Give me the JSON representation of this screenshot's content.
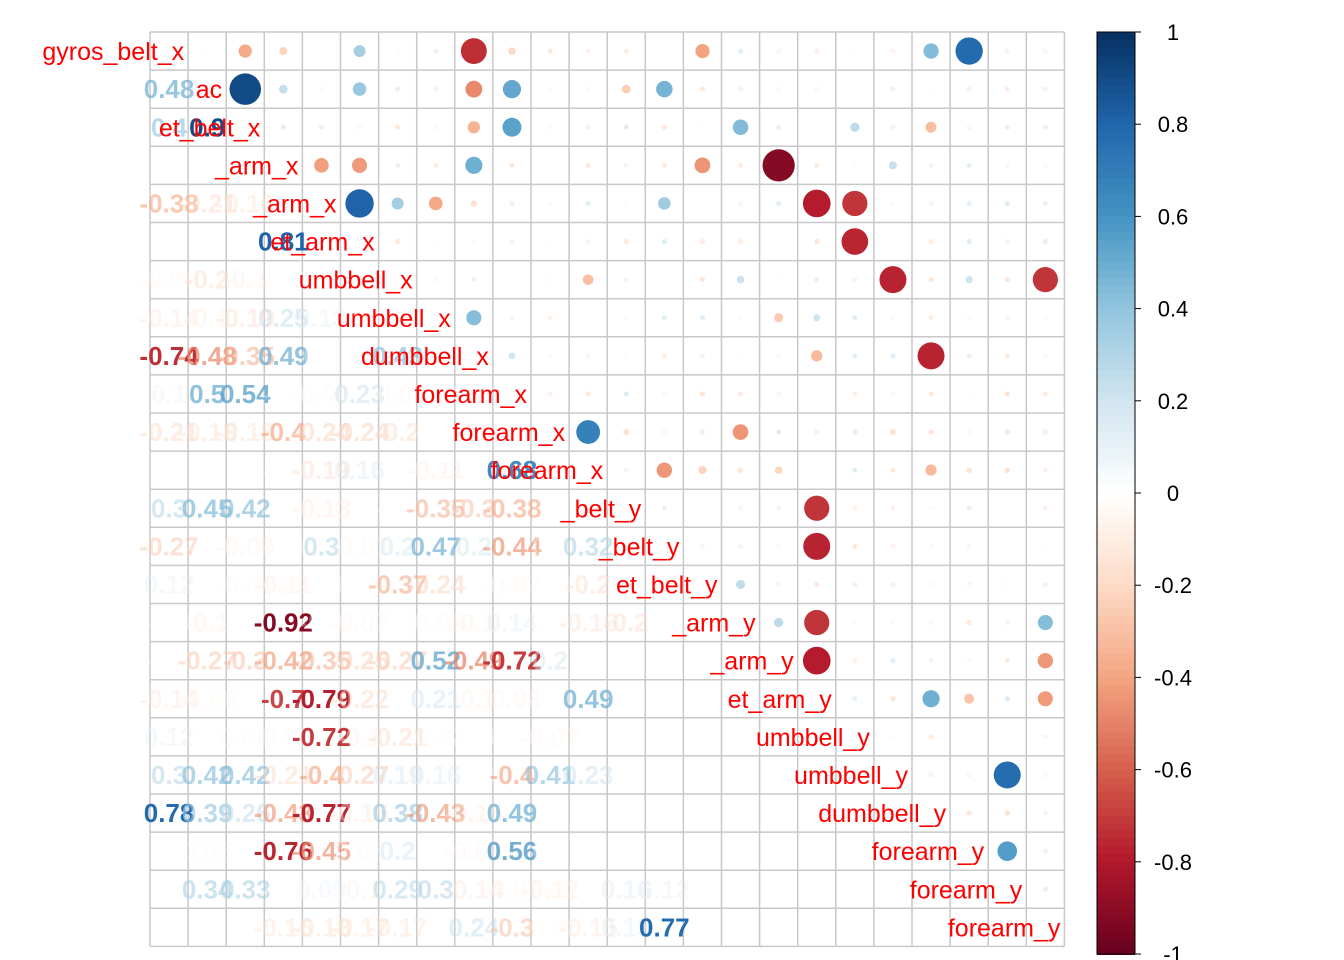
{
  "chart_data": {
    "type": "heatmap",
    "title": "",
    "variables": [
      "gyros_belt_x",
      "accel_belt_x",
      "magnet_belt_x",
      "gyros_arm_x",
      "accel_arm_x",
      "magnet_arm_x",
      "gyros_dumbbell_x",
      "accel_dumbbell_x",
      "magnet_dumbbell_x",
      "gyros_forearm_x",
      "accel_forearm_x",
      "magnet_forearm_x",
      "gyros_belt_y",
      "accel_belt_y",
      "magnet_belt_y",
      "gyros_arm_y",
      "accel_arm_y",
      "magnet_arm_y",
      "gyros_dumbbell_y",
      "accel_dumbbell_y",
      "magnet_dumbbell_y",
      "gyros_forearm_y",
      "accel_forearm_y",
      "magnet_forearm_y"
    ],
    "row_labels_visible": [
      "gyros_belt_x",
      "ac",
      "et_belt_x",
      "_arm_x",
      "_arm_x",
      "et_arm_x",
      "umbbell_x",
      "umbbell_x",
      "dumbbell_x",
      "forearm_x",
      "forearm_x",
      "forearm_x",
      "_belt_y",
      "_belt_y",
      "et_belt_y",
      "_arm_y",
      "_arm_y",
      "et_arm_y",
      "umbbell_y",
      "umbbell_y",
      "dumbbell_y",
      "forearm_y",
      "forearm_y",
      "forearm_y"
    ],
    "lower_triangle_labels": [
      [
        "0.48"
      ],
      [
        "0.4",
        "0.9"
      ],
      [
        "0.0",
        "0.0",
        "0.0"
      ],
      [
        "-0.38",
        "-0.21",
        "-0.16",
        ""
      ],
      [
        "0.0",
        "0.0",
        "0.0",
        "0.81",
        ""
      ],
      [
        "-0.06",
        "-0.2",
        "-0.1",
        "-0.0",
        "-0.0",
        ""
      ],
      [
        "-0.14",
        "-0.1",
        "-0.19",
        "0.25",
        "0.13",
        "-0.0",
        ""
      ],
      [
        "-0.74",
        "-0.48",
        "-0.35",
        "0.49",
        "0.0",
        "0.0",
        "0.43",
        ""
      ],
      [
        "0.1",
        "0.5",
        "0.54",
        "-0.0",
        "-0.06",
        "0.23",
        "-0.07",
        "-0.0",
        ""
      ],
      [
        "-0.21",
        "-0.18",
        "-0.18",
        "-0.4",
        "-0.24",
        "-0.24",
        "-0.2",
        "-0.0",
        "-0.1",
        ""
      ],
      [
        "0.0",
        "0.0",
        "0.0",
        "-0.0",
        "-0.19",
        "0.16",
        "-0.0",
        "-0.11",
        "-0.0",
        "0.68",
        ""
      ],
      [
        "0.3",
        "0.45",
        "0.42",
        "-0.0",
        "-0.13",
        "0.0",
        "-0.0",
        "-0.35",
        "-0.3",
        "-0.38",
        "",
        ""
      ],
      [
        "-0.27",
        "-0.0",
        "-0.09",
        "-0.0",
        "0.3",
        "-0.07",
        "0.2",
        "0.47",
        "0.2",
        "-0.44",
        "0.0",
        "0.32"
      ],
      [
        "0.12",
        "",
        "-0.04",
        "-0.11",
        "-0.0",
        "-0.0",
        "-0.37",
        "-0.24",
        "-0.0",
        "-0.07",
        "-0.0",
        "-0.2"
      ],
      [
        "-0.0",
        "-0.1",
        "-0.0",
        "-0.92",
        "-0.0",
        "-0.07",
        "-0.0",
        "-0.05",
        "-0.1",
        "0.14",
        "0.0",
        "-0.16",
        "-0.2"
      ],
      [
        "-0.0",
        "-0.27",
        "-0.3",
        "-0.42",
        "-0.35",
        "-0.25",
        "-0.27",
        "0.52",
        "-0.49",
        "-0.72",
        "0.2"
      ],
      [
        "-0.14",
        "-0.06",
        "0.0",
        "-0.7",
        "-0.79",
        "-0.22",
        "-0.0",
        "0.21",
        "-0.1",
        "-0.08",
        "-0.0",
        "0.49"
      ],
      [
        "0.12",
        "0.0",
        "0.05",
        "-0.05",
        "-0.72",
        "-0.1",
        "-0.21",
        "-0.02",
        "-0.0",
        "-0.0",
        "-0.07"
      ],
      [
        "0.3",
        "0.42",
        "0.42",
        "-0.21",
        "-0.4",
        "-0.27",
        "0.19",
        "0.16",
        "-0.0",
        "-0.4",
        "0.41",
        "0.23",
        "0.0"
      ],
      [
        "0.78",
        "0.39",
        "0.26",
        "-0.43",
        "-0.77",
        "-0.15",
        "0.38",
        "-0.43",
        "-0.15",
        "0.49"
      ],
      [
        "0.0",
        "0.05",
        "0.0",
        "-0.76",
        "-0.45",
        "0.05",
        "0.2",
        "0.0",
        "-0.08",
        "0.56",
        "0.0"
      ],
      [
        "0.0",
        "0.34",
        "0.33",
        "-0.0",
        "0.09",
        "-0.1",
        "0.29",
        "0.3",
        "-0.14",
        "-0.07",
        "-0.12",
        "0.0",
        "0.16",
        "0.12"
      ],
      [
        "0.0",
        "0.0",
        "0.0",
        "-0.16",
        "-0.18",
        "-0.17",
        "-0.17",
        "0.0",
        "0.24",
        "-0.3",
        "-0.02",
        "-0.15",
        "0.15",
        "0.77"
      ]
    ],
    "upper_triangle_circles": "correlation magnitude shown by circle size and colour",
    "colorbar": {
      "ticks": [
        "1",
        "0.8",
        "0.6",
        "0.4",
        "0.2",
        "0",
        "-0.2",
        "-0.4",
        "-0.6",
        "-0.8",
        "-1"
      ],
      "min": -1,
      "max": 1,
      "colors": {
        "pos": "#053061",
        "mid": "#ffffff",
        "neg": "#67001f"
      }
    },
    "grid": true
  }
}
